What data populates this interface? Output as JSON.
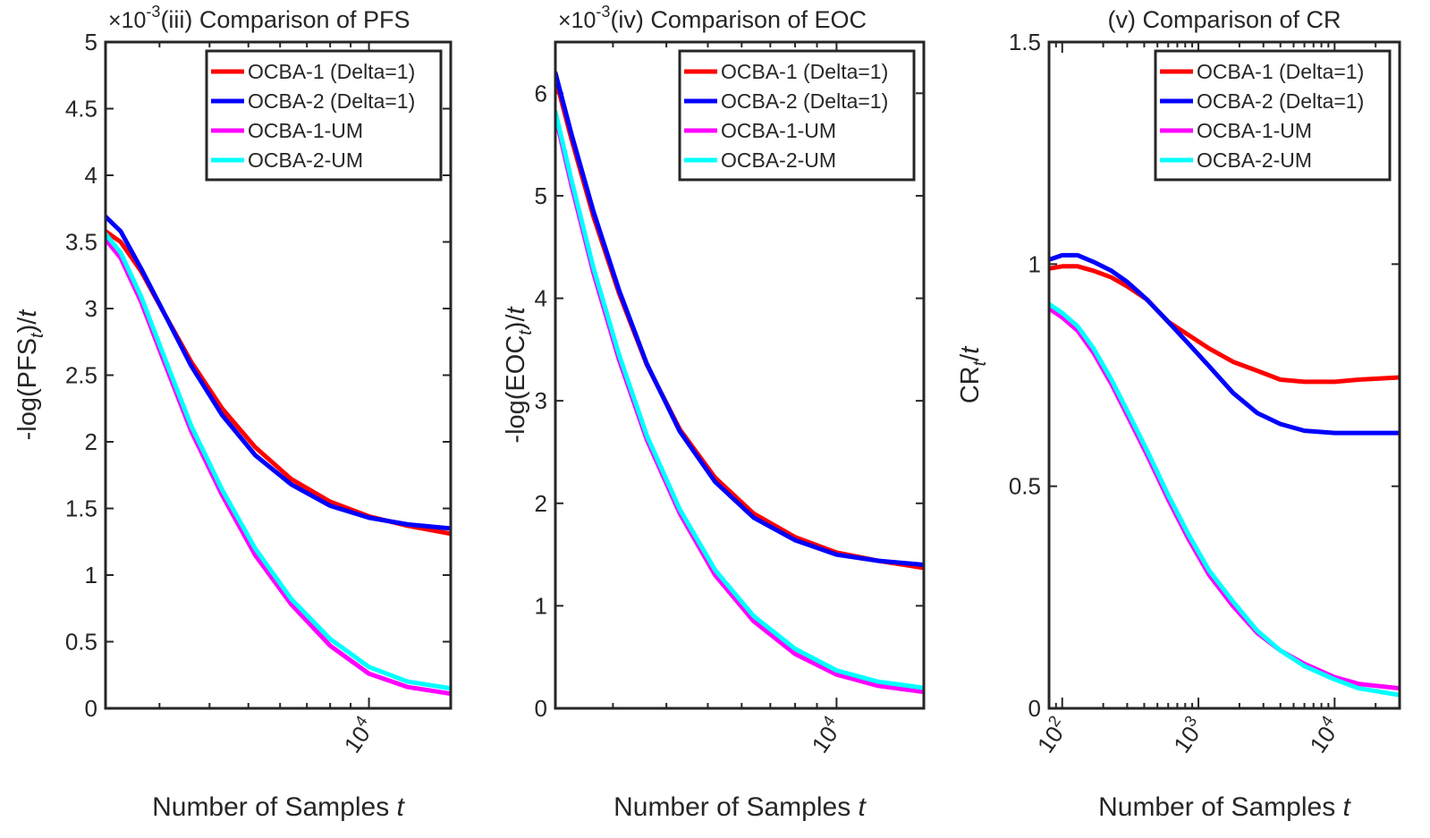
{
  "chart_data": [
    {
      "type": "line",
      "title": "(iii) Comparison of PFS",
      "exponent_label": "×10",
      "exponent_sup": "-3",
      "ylabel_main": "-log(PFS",
      "ylabel_sub": "t",
      "ylabel_tail": ")/",
      "ylabel_var": "t",
      "xlabel_main": "Number of Samples ",
      "xlabel_var": "t",
      "xscale": "log",
      "xlim": [
        2200,
        16000
      ],
      "ylim": [
        0,
        5
      ],
      "yticks": [
        {
          "value": 0,
          "label": "0"
        },
        {
          "value": 0.5,
          "label": "0.5"
        },
        {
          "value": 1,
          "label": "1"
        },
        {
          "value": 1.5,
          "label": "1.5"
        },
        {
          "value": 2,
          "label": "2"
        },
        {
          "value": 2.5,
          "label": "2.5"
        },
        {
          "value": 3,
          "label": "3"
        },
        {
          "value": 3.5,
          "label": "3.5"
        },
        {
          "value": 4,
          "label": "4"
        },
        {
          "value": 4.5,
          "label": "4.5"
        },
        {
          "value": 5,
          "label": "5"
        }
      ],
      "xticks": [
        {
          "value": 10000,
          "base": "10",
          "exp": "4"
        }
      ],
      "grid": false,
      "legend_position": "top-right",
      "series": [
        {
          "name": "OCBA-1 (Delta=1)",
          "color": "#ff0000",
          "x": [
            2200,
            2400,
            2700,
            3100,
            3600,
            4300,
            5200,
            6400,
            8000,
            10000,
            12500,
            16000
          ],
          "y": [
            3.58,
            3.5,
            3.28,
            2.95,
            2.6,
            2.25,
            1.96,
            1.72,
            1.55,
            1.44,
            1.37,
            1.31
          ]
        },
        {
          "name": "OCBA-2 (Delta=1)",
          "color": "#0000ff",
          "x": [
            2200,
            2400,
            2700,
            3100,
            3600,
            4300,
            5200,
            6400,
            8000,
            10000,
            12500,
            16000
          ],
          "y": [
            3.69,
            3.58,
            3.3,
            2.95,
            2.57,
            2.2,
            1.9,
            1.68,
            1.52,
            1.43,
            1.38,
            1.35
          ]
        },
        {
          "name": "OCBA-1-UM",
          "color": "#ff00ff",
          "x": [
            2200,
            2400,
            2700,
            3100,
            3600,
            4300,
            5200,
            6400,
            8000,
            10000,
            12500,
            16000
          ],
          "y": [
            3.52,
            3.38,
            3.05,
            2.58,
            2.08,
            1.6,
            1.15,
            0.78,
            0.47,
            0.26,
            0.16,
            0.11
          ]
        },
        {
          "name": "OCBA-2-UM",
          "color": "#00ffff",
          "x": [
            2200,
            2400,
            2700,
            3100,
            3600,
            4300,
            5200,
            6400,
            8000,
            10000,
            12500,
            16000
          ],
          "y": [
            3.56,
            3.42,
            3.09,
            2.62,
            2.12,
            1.64,
            1.2,
            0.82,
            0.52,
            0.31,
            0.2,
            0.15
          ]
        }
      ]
    },
    {
      "type": "line",
      "title": "(iv) Comparison of EOC",
      "exponent_label": "×10",
      "exponent_sup": "-3",
      "ylabel_main": "-log(EOC",
      "ylabel_sub": "t",
      "ylabel_tail": ")/",
      "ylabel_var": "t",
      "xlabel_main": "Number of Samples ",
      "xlabel_var": "t",
      "xscale": "log",
      "xlim": [
        2200,
        16000
      ],
      "ylim": [
        0,
        6.5
      ],
      "yticks": [
        {
          "value": 0,
          "label": "0"
        },
        {
          "value": 1,
          "label": "1"
        },
        {
          "value": 2,
          "label": "2"
        },
        {
          "value": 3,
          "label": "3"
        },
        {
          "value": 4,
          "label": "4"
        },
        {
          "value": 5,
          "label": "5"
        },
        {
          "value": 6,
          "label": "6"
        }
      ],
      "xticks": [
        {
          "value": 10000,
          "base": "10",
          "exp": "4"
        }
      ],
      "grid": false,
      "legend_position": "top-right",
      "series": [
        {
          "name": "OCBA-1 (Delta=1)",
          "color": "#ff0000",
          "x": [
            2200,
            2400,
            2700,
            3100,
            3600,
            4300,
            5200,
            6400,
            8000,
            10000,
            12500,
            16000
          ],
          "y": [
            6.15,
            5.55,
            4.8,
            4.05,
            3.35,
            2.72,
            2.25,
            1.9,
            1.67,
            1.52,
            1.44,
            1.37
          ]
        },
        {
          "name": "OCBA-2 (Delta=1)",
          "color": "#0000ff",
          "x": [
            2200,
            2400,
            2700,
            3100,
            3600,
            4300,
            5200,
            6400,
            8000,
            10000,
            12500,
            16000
          ],
          "y": [
            6.2,
            5.6,
            4.85,
            4.08,
            3.36,
            2.7,
            2.21,
            1.86,
            1.64,
            1.5,
            1.44,
            1.4
          ]
        },
        {
          "name": "OCBA-1-UM",
          "color": "#ff00ff",
          "x": [
            2200,
            2400,
            2700,
            3100,
            3600,
            4300,
            5200,
            6400,
            8000,
            10000,
            12500,
            16000
          ],
          "y": [
            5.78,
            5.1,
            4.25,
            3.4,
            2.62,
            1.9,
            1.3,
            0.85,
            0.53,
            0.33,
            0.22,
            0.16
          ]
        },
        {
          "name": "OCBA-2-UM",
          "color": "#00ffff",
          "x": [
            2200,
            2400,
            2700,
            3100,
            3600,
            4300,
            5200,
            6400,
            8000,
            10000,
            12500,
            16000
          ],
          "y": [
            5.82,
            5.15,
            4.3,
            3.45,
            2.66,
            1.94,
            1.35,
            0.9,
            0.58,
            0.37,
            0.26,
            0.2
          ]
        }
      ]
    },
    {
      "type": "line",
      "title": "(v) Comparison of CR",
      "ylabel_main": "CR",
      "ylabel_sub": "t",
      "ylabel_tail": "/",
      "ylabel_var": "t",
      "xlabel_main": "Number of Samples ",
      "xlabel_var": "t",
      "xscale": "log",
      "xlim": [
        80,
        30000
      ],
      "ylim": [
        0,
        1.5
      ],
      "yticks": [
        {
          "value": 0,
          "label": "0"
        },
        {
          "value": 0.5,
          "label": "0.5"
        },
        {
          "value": 1,
          "label": "1"
        },
        {
          "value": 1.5,
          "label": "1.5"
        }
      ],
      "xticks": [
        {
          "value": 100,
          "base": "10",
          "exp": "2"
        },
        {
          "value": 1000,
          "base": "10",
          "exp": "3"
        },
        {
          "value": 10000,
          "base": "10",
          "exp": "4"
        }
      ],
      "grid": false,
      "legend_position": "top-right",
      "series": [
        {
          "name": "OCBA-1 (Delta=1)",
          "color": "#ff0000",
          "x": [
            80,
            100,
            130,
            170,
            230,
            300,
            420,
            600,
            850,
            1200,
            1800,
            2700,
            4000,
            6000,
            10000,
            15000,
            30000
          ],
          "y": [
            0.99,
            0.995,
            0.995,
            0.985,
            0.97,
            0.95,
            0.92,
            0.87,
            0.84,
            0.81,
            0.78,
            0.76,
            0.74,
            0.735,
            0.735,
            0.74,
            0.745
          ]
        },
        {
          "name": "OCBA-2 (Delta=1)",
          "color": "#0000ff",
          "x": [
            80,
            100,
            130,
            170,
            230,
            300,
            420,
            600,
            850,
            1200,
            1800,
            2700,
            4000,
            6000,
            10000,
            15000,
            30000
          ],
          "y": [
            1.01,
            1.02,
            1.02,
            1.005,
            0.985,
            0.96,
            0.92,
            0.87,
            0.82,
            0.77,
            0.71,
            0.665,
            0.64,
            0.625,
            0.62,
            0.62,
            0.62
          ]
        },
        {
          "name": "OCBA-1-UM",
          "color": "#ff00ff",
          "x": [
            80,
            100,
            130,
            170,
            230,
            300,
            420,
            600,
            850,
            1200,
            1800,
            2700,
            4000,
            6000,
            10000,
            15000,
            30000
          ],
          "y": [
            0.9,
            0.88,
            0.85,
            0.8,
            0.73,
            0.66,
            0.57,
            0.47,
            0.38,
            0.3,
            0.23,
            0.17,
            0.13,
            0.1,
            0.07,
            0.055,
            0.045
          ]
        },
        {
          "name": "OCBA-2-UM",
          "color": "#00ffff",
          "x": [
            80,
            100,
            130,
            170,
            230,
            300,
            420,
            600,
            850,
            1200,
            1800,
            2700,
            4000,
            6000,
            10000,
            15000,
            30000
          ],
          "y": [
            0.91,
            0.89,
            0.86,
            0.81,
            0.74,
            0.67,
            0.58,
            0.48,
            0.39,
            0.31,
            0.24,
            0.175,
            0.13,
            0.095,
            0.065,
            0.045,
            0.03
          ]
        }
      ]
    }
  ]
}
